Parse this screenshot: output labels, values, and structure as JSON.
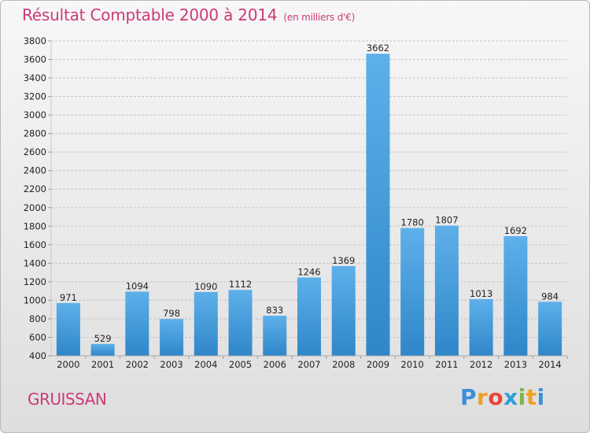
{
  "header": {
    "title": "Résultat Comptable 2000 à 2014",
    "unit": "(en milliers d'€)"
  },
  "footer": {
    "place": "GRUISSAN",
    "logo_letters": [
      "P",
      "r",
      "o",
      "x",
      "i",
      "t",
      "i"
    ],
    "logo_colors": [
      "#3d8fd6",
      "#f0a020",
      "#e8463a",
      "#2e9fd6",
      "#7ab648",
      "#f0a020",
      "#3d8fd6"
    ]
  },
  "colors": {
    "title": "#cc3a77",
    "bar_top": "#5eb0ea",
    "bar_bottom": "#2f86c8"
  },
  "chart_data": {
    "type": "bar",
    "categories": [
      "2000",
      "2001",
      "2002",
      "2003",
      "2004",
      "2005",
      "2006",
      "2007",
      "2008",
      "2009",
      "2010",
      "2011",
      "2012",
      "2013",
      "2014"
    ],
    "values": [
      971,
      529,
      1094,
      798,
      1090,
      1112,
      833,
      1246,
      1369,
      3662,
      1780,
      1807,
      1013,
      1692,
      984
    ],
    "ylim": [
      400,
      3800
    ],
    "yticks": [
      400,
      600,
      800,
      1000,
      1200,
      1400,
      1600,
      1800,
      2000,
      2200,
      2400,
      2600,
      2800,
      3000,
      3200,
      3400,
      3600,
      3800
    ],
    "grid": true,
    "legend": "none"
  }
}
